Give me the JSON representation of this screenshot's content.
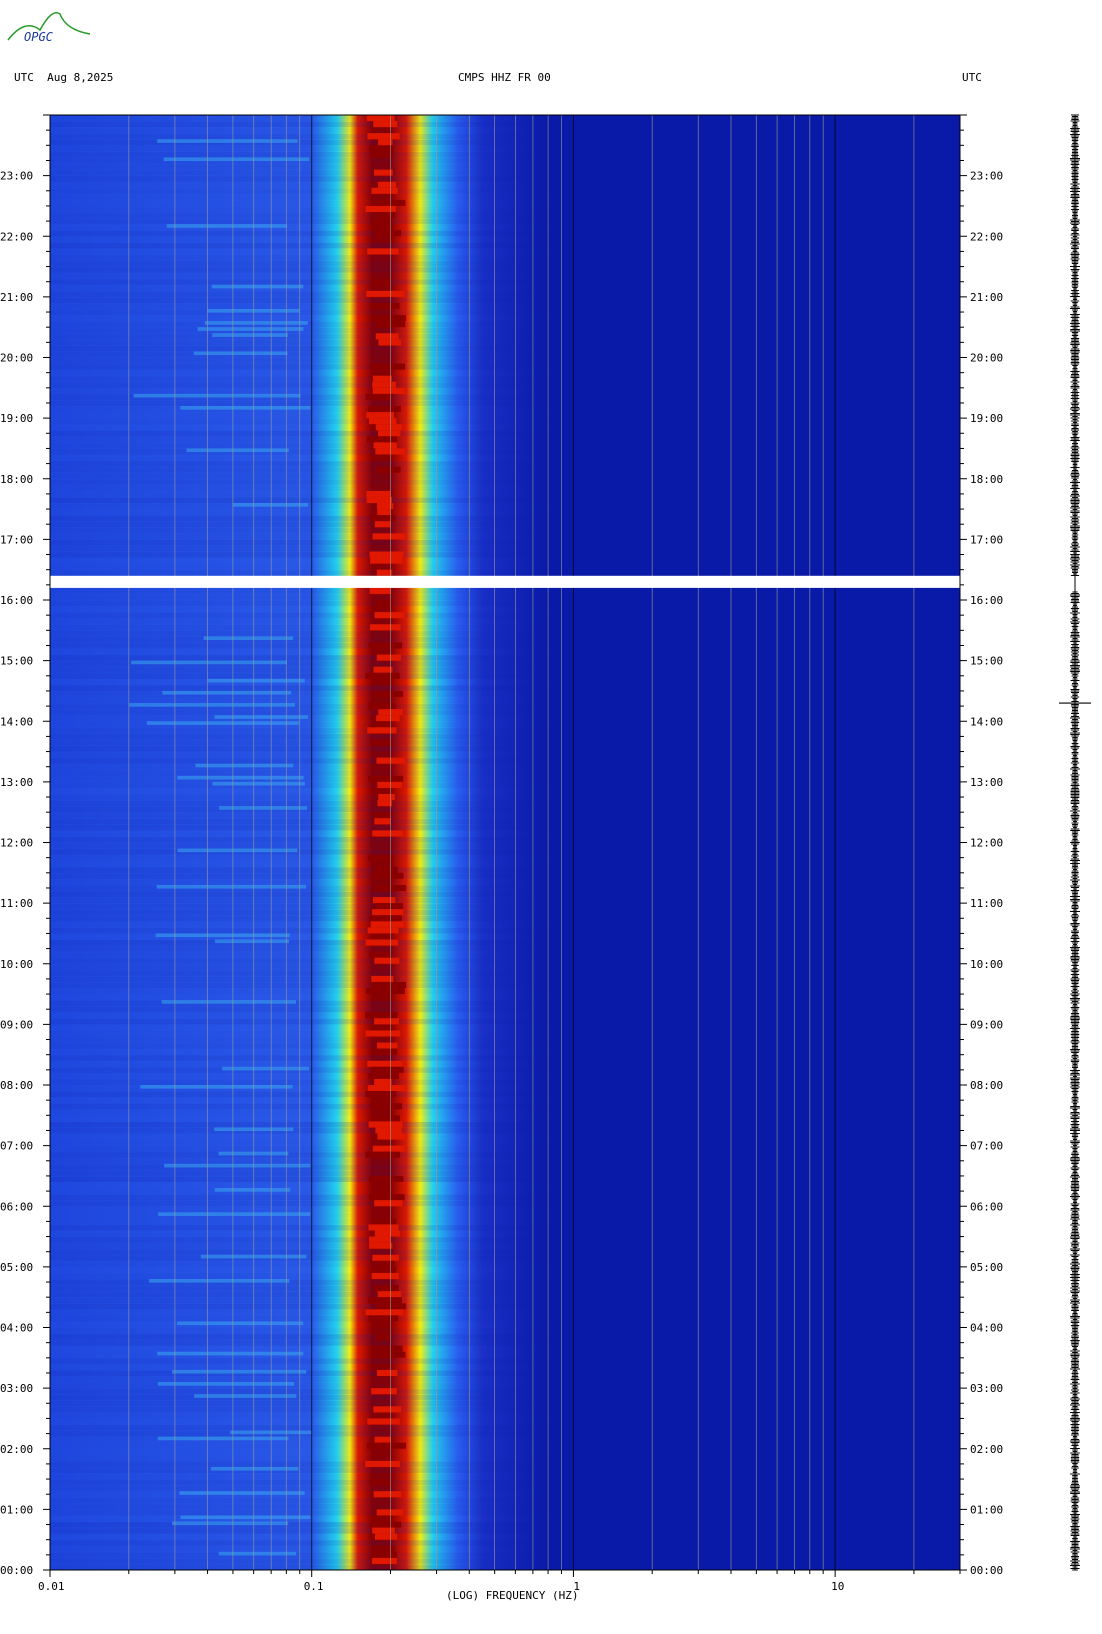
{
  "header": {
    "logo_text": "OPGC",
    "left_label": "UTC  Aug 8,2025",
    "center_label": "CMPS HHZ FR 00",
    "right_label": "UTC"
  },
  "chart_data": {
    "type": "heatmap",
    "title": "CMPS HHZ FR 00",
    "date": "Aug 8,2025",
    "xlabel": "(LOG) FREQUENCY (HZ)",
    "x_scale": "log",
    "xlim": [
      0.01,
      30
    ],
    "x_tick_labels": [
      "0.01",
      "0.1",
      "1",
      "10"
    ],
    "x_tick_values": [
      0.01,
      0.1,
      1,
      10
    ],
    "ylabel": "UTC",
    "ylim_hours": [
      0,
      24
    ],
    "y_tick_labels": [
      "00:00",
      "01:00",
      "02:00",
      "03:00",
      "04:00",
      "05:00",
      "06:00",
      "07:00",
      "08:00",
      "09:00",
      "10:00",
      "11:00",
      "12:00",
      "13:00",
      "14:00",
      "15:00",
      "16:00",
      "17:00",
      "18:00",
      "19:00",
      "20:00",
      "21:00",
      "22:00",
      "23:00"
    ],
    "data_gap_hours": [
      16.2,
      16.4
    ],
    "dominant_band_hz": [
      0.15,
      0.25
    ],
    "colors": {
      "background_low": "#0a1aa8",
      "low": "#1f48e0",
      "cyan": "#22d4f0",
      "yellow": "#f4f010",
      "red": "#e01800",
      "dark_red": "#8a0000"
    }
  }
}
